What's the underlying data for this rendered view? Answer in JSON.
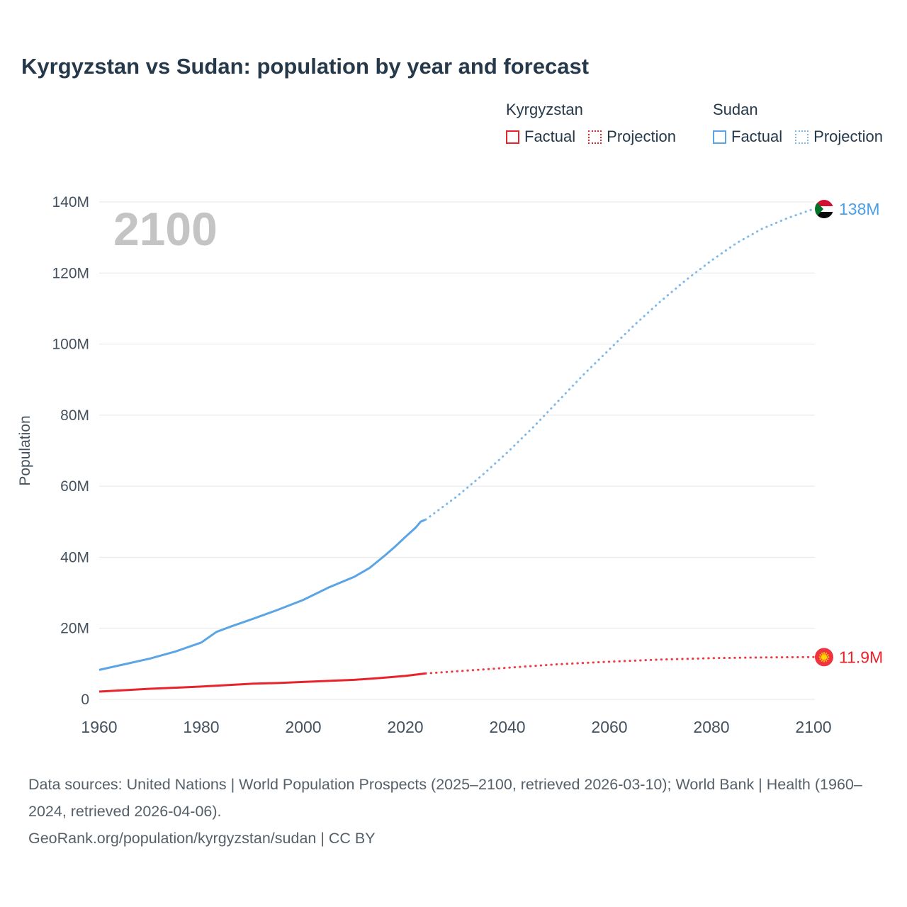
{
  "title": "Kyrgyzstan vs Sudan: population by year and forecast",
  "watermark": "2100",
  "legend": {
    "groups": [
      {
        "name": "Kyrgyzstan",
        "items": [
          {
            "label": "Factual",
            "style": "solid",
            "color": "#e9232b"
          },
          {
            "label": "Projection",
            "style": "dotted",
            "color": "#e9232b"
          }
        ]
      },
      {
        "name": "Sudan",
        "items": [
          {
            "label": "Factual",
            "style": "solid",
            "color": "#5ba4e5"
          },
          {
            "label": "Projection",
            "style": "dotted",
            "color": "#7fb9ea"
          }
        ]
      }
    ]
  },
  "footer": {
    "sources_line": "Data sources: United Nations | World Population Prospects (2025–2100, retrieved 2026-03-10); World Bank | Health (1960–2024, retrieved 2026-04-06).",
    "attribution_line": "GeoRank.org/population/kyrgyzstan/sudan | CC BY"
  },
  "chart_data": {
    "type": "line",
    "title": "Kyrgyzstan vs Sudan: population by year and forecast",
    "xlabel": "",
    "ylabel": "Population",
    "xlim": [
      1960,
      2100
    ],
    "ylim_millions": [
      0,
      140
    ],
    "grid": "horizontal",
    "legend_position": "top-right",
    "x_ticks": [
      1960,
      1980,
      2000,
      2020,
      2040,
      2060,
      2080,
      2100
    ],
    "y_ticks": [
      {
        "value": 0,
        "label": "0"
      },
      {
        "value": 20,
        "label": "20M"
      },
      {
        "value": 40,
        "label": "40M"
      },
      {
        "value": 60,
        "label": "60M"
      },
      {
        "value": 80,
        "label": "80M"
      },
      {
        "value": 100,
        "label": "100M"
      },
      {
        "value": 120,
        "label": "120M"
      },
      {
        "value": 140,
        "label": "140M"
      }
    ],
    "series": [
      {
        "id": "sudan-factual",
        "name": "Sudan Factual",
        "style": "solid",
        "color": "#5ba4e5",
        "unit": "millions",
        "points": [
          [
            1960,
            8.3
          ],
          [
            1965,
            9.9
          ],
          [
            1970,
            11.5
          ],
          [
            1975,
            13.5
          ],
          [
            1980,
            16.0
          ],
          [
            1983,
            19.0
          ],
          [
            1986,
            20.6
          ],
          [
            1990,
            22.6
          ],
          [
            1995,
            25.2
          ],
          [
            2000,
            28.0
          ],
          [
            2005,
            31.5
          ],
          [
            2010,
            34.5
          ],
          [
            2013,
            37.0
          ],
          [
            2016,
            40.5
          ],
          [
            2018,
            43.0
          ],
          [
            2020,
            45.7
          ],
          [
            2022,
            48.3
          ],
          [
            2023,
            50.0
          ],
          [
            2024,
            50.6
          ]
        ]
      },
      {
        "id": "sudan-projection",
        "name": "Sudan Projection",
        "style": "dotted",
        "color": "#7fb9ea",
        "unit": "millions",
        "points": [
          [
            2024,
            50.6
          ],
          [
            2030,
            57
          ],
          [
            2035,
            63
          ],
          [
            2040,
            69.5
          ],
          [
            2045,
            76.5
          ],
          [
            2050,
            84
          ],
          [
            2055,
            91.5
          ],
          [
            2060,
            98.5
          ],
          [
            2065,
            105.5
          ],
          [
            2070,
            112
          ],
          [
            2075,
            118
          ],
          [
            2080,
            123.5
          ],
          [
            2085,
            128.5
          ],
          [
            2090,
            132.5
          ],
          [
            2095,
            135.5
          ],
          [
            2100,
            138
          ]
        ]
      },
      {
        "id": "kyrgyzstan-factual",
        "name": "Kyrgyzstan Factual",
        "style": "solid",
        "color": "#e9232b",
        "unit": "millions",
        "points": [
          [
            1960,
            2.2
          ],
          [
            1965,
            2.6
          ],
          [
            1970,
            3.0
          ],
          [
            1975,
            3.3
          ],
          [
            1980,
            3.6
          ],
          [
            1985,
            4.0
          ],
          [
            1990,
            4.4
          ],
          [
            1995,
            4.6
          ],
          [
            2000,
            4.9
          ],
          [
            2005,
            5.2
          ],
          [
            2010,
            5.5
          ],
          [
            2015,
            6.0
          ],
          [
            2020,
            6.6
          ],
          [
            2024,
            7.3
          ]
        ]
      },
      {
        "id": "kyrgyzstan-projection",
        "name": "Kyrgyzstan Projection",
        "style": "dotted",
        "color": "#ee3a41",
        "unit": "millions",
        "points": [
          [
            2024,
            7.3
          ],
          [
            2030,
            7.9
          ],
          [
            2040,
            8.9
          ],
          [
            2050,
            9.9
          ],
          [
            2060,
            10.6
          ],
          [
            2070,
            11.2
          ],
          [
            2080,
            11.6
          ],
          [
            2090,
            11.8
          ],
          [
            2100,
            11.9
          ]
        ]
      }
    ],
    "end_markers": [
      {
        "series": "sudan-projection",
        "x": 2100,
        "y": 138,
        "label": "138M",
        "flag": "sudan",
        "label_color": "#4a9fe6"
      },
      {
        "series": "kyrgyzstan-projection",
        "x": 2100,
        "y": 11.9,
        "label": "11.9M",
        "flag": "kyrgyzstan",
        "label_color": "#e9232b"
      }
    ],
    "flag_colors": {
      "sudan": {
        "red": "#d21034",
        "white": "#ffffff",
        "black": "#0a0a0a",
        "green": "#007229"
      },
      "kyrgyzstan": {
        "red": "#ef3340",
        "yellow": "#ffd100"
      }
    },
    "text_colors": {
      "axis": "#44525f",
      "title": "#26394b",
      "watermark": "#c4c4c4",
      "gridline": "#e7e7e7"
    }
  }
}
